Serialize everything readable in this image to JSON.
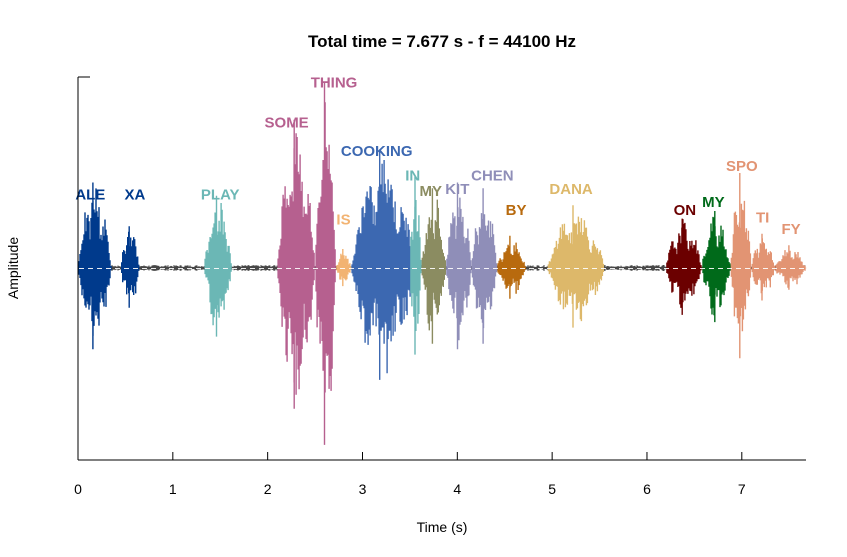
{
  "chart_data": {
    "type": "area",
    "title": "Total time = 7.677 s - f = 44100 Hz",
    "xlabel": "Time (s)",
    "ylabel": "Amplitude",
    "xlim": [
      0,
      7.677
    ],
    "ylim": [
      -1,
      1
    ],
    "xticks": [
      "0",
      "1",
      "2",
      "3",
      "4",
      "5",
      "6",
      "7"
    ],
    "grid": false,
    "zero_line": "dashed",
    "background_color": "#1a1a1a",
    "segments": [
      {
        "label": "ALE",
        "color": "#003a8c",
        "start": 0.0,
        "end": 0.35,
        "amp": 0.45,
        "label_x": 0.13,
        "label_y": 0.36
      },
      {
        "label": "XA",
        "color": "#003a8c",
        "start": 0.45,
        "end": 0.65,
        "amp": 0.22,
        "label_x": 0.6,
        "label_y": 0.36
      },
      {
        "label": "PLAY",
        "color": "#6bb7b5",
        "start": 1.33,
        "end": 1.62,
        "amp": 0.38,
        "label_x": 1.5,
        "label_y": 0.36
      },
      {
        "label": "SOME",
        "color": "#b6608f",
        "start": 2.1,
        "end": 2.5,
        "amp": 0.78,
        "label_x": 2.2,
        "label_y": 0.74
      },
      {
        "label": "THING",
        "color": "#b6608f",
        "start": 2.5,
        "end": 2.72,
        "amp": 0.98,
        "label_x": 2.7,
        "label_y": 0.95
      },
      {
        "label": "IS",
        "color": "#f2b372",
        "start": 2.72,
        "end": 2.88,
        "amp": 0.1,
        "label_x": 2.8,
        "label_y": 0.23
      },
      {
        "label": "COOKING",
        "color": "#3c68b1",
        "start": 2.88,
        "end": 3.55,
        "amp": 0.62,
        "label_x": 3.15,
        "label_y": 0.59
      },
      {
        "label": "IN",
        "color": "#6bb7b5",
        "start": 3.5,
        "end": 3.62,
        "amp": 0.48,
        "label_x": 3.53,
        "label_y": 0.46
      },
      {
        "label": "MY",
        "color": "#8b8c61",
        "start": 3.62,
        "end": 3.88,
        "amp": 0.42,
        "label_x": 3.72,
        "label_y": 0.38
      },
      {
        "label": "KIT",
        "color": "#8f8eb8",
        "start": 3.88,
        "end": 4.15,
        "amp": 0.45,
        "label_x": 4.0,
        "label_y": 0.39
      },
      {
        "label": "CHEN",
        "color": "#8f8eb8",
        "start": 4.15,
        "end": 4.42,
        "amp": 0.42,
        "label_x": 4.37,
        "label_y": 0.46
      },
      {
        "label": "BY",
        "color": "#b86a0e",
        "start": 4.42,
        "end": 4.72,
        "amp": 0.17,
        "label_x": 4.62,
        "label_y": 0.28
      },
      {
        "label": "DANA",
        "color": "#ddb86a",
        "start": 4.95,
        "end": 5.55,
        "amp": 0.33,
        "label_x": 5.2,
        "label_y": 0.39
      },
      {
        "label": "ON",
        "color": "#6b0000",
        "start": 6.2,
        "end": 6.58,
        "amp": 0.26,
        "label_x": 6.4,
        "label_y": 0.28
      },
      {
        "label": "MY",
        "color": "#006a1a",
        "start": 6.58,
        "end": 6.88,
        "amp": 0.3,
        "label_x": 6.7,
        "label_y": 0.32
      },
      {
        "label": "SPO",
        "color": "#e29473",
        "start": 6.88,
        "end": 7.1,
        "amp": 0.5,
        "label_x": 7.0,
        "label_y": 0.51
      },
      {
        "label": "TI",
        "color": "#e29473",
        "start": 7.1,
        "end": 7.35,
        "amp": 0.18,
        "label_x": 7.22,
        "label_y": 0.24
      },
      {
        "label": "FY",
        "color": "#e29473",
        "start": 7.35,
        "end": 7.677,
        "amp": 0.12,
        "label_x": 7.52,
        "label_y": 0.18
      }
    ]
  }
}
